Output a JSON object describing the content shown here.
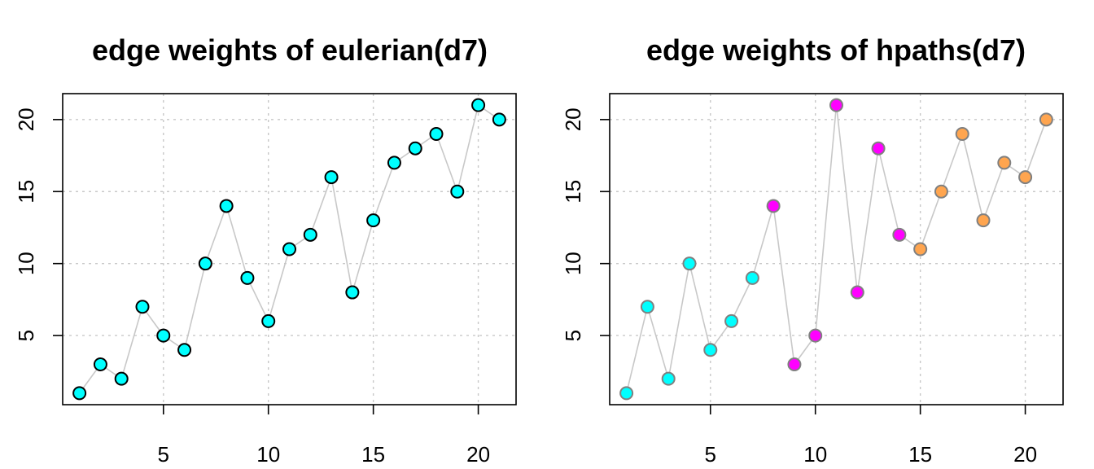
{
  "chart_data": [
    {
      "type": "scatter",
      "title": "edge weights of eulerian(d7)",
      "xlabel": "",
      "ylabel": "",
      "x_ticks": [
        5,
        10,
        15,
        20
      ],
      "y_ticks": [
        5,
        10,
        15,
        20
      ],
      "xlim": [
        0.2,
        21.8
      ],
      "ylim": [
        0.2,
        21.8
      ],
      "grid": true,
      "connect_points": true,
      "line_color": "#c8c8c8",
      "point_stroke": "#000000",
      "x": [
        1,
        2,
        3,
        4,
        5,
        6,
        7,
        8,
        9,
        10,
        11,
        12,
        13,
        14,
        15,
        16,
        17,
        18,
        19,
        20,
        21
      ],
      "y": [
        1,
        3,
        2,
        7,
        5,
        4,
        10,
        14,
        9,
        6,
        11,
        12,
        16,
        8,
        13,
        17,
        18,
        19,
        15,
        21,
        20
      ],
      "colors": [
        "#00ffff",
        "#00ffff",
        "#00ffff",
        "#00ffff",
        "#00ffff",
        "#00ffff",
        "#00ffff",
        "#00ffff",
        "#00ffff",
        "#00ffff",
        "#00ffff",
        "#00ffff",
        "#00ffff",
        "#00ffff",
        "#00ffff",
        "#00ffff",
        "#00ffff",
        "#00ffff",
        "#00ffff",
        "#00ffff",
        "#00ffff"
      ]
    },
    {
      "type": "scatter",
      "title": "edge weights of hpaths(d7)",
      "xlabel": "",
      "ylabel": "",
      "x_ticks": [
        5,
        10,
        15,
        20
      ],
      "y_ticks": [
        5,
        10,
        15,
        20
      ],
      "xlim": [
        0.2,
        21.8
      ],
      "ylim": [
        0.2,
        21.8
      ],
      "grid": true,
      "connect_points": true,
      "line_color": "#c8c8c8",
      "point_stroke": "#808080",
      "x": [
        1,
        2,
        3,
        4,
        5,
        6,
        7,
        8,
        9,
        10,
        11,
        12,
        13,
        14,
        15,
        16,
        17,
        18,
        19,
        20,
        21
      ],
      "y": [
        1,
        7,
        2,
        10,
        4,
        6,
        9,
        14,
        3,
        5,
        21,
        8,
        18,
        12,
        11,
        15,
        19,
        13,
        17,
        16,
        20
      ],
      "colors": [
        "#00ffff",
        "#00ffff",
        "#00ffff",
        "#00ffff",
        "#00ffff",
        "#00ffff",
        "#00ffff",
        "#ff00ff",
        "#ff00ff",
        "#ff00ff",
        "#ff00ff",
        "#ff00ff",
        "#ff00ff",
        "#ff00ff",
        "#ffa54f",
        "#ffa54f",
        "#ffa54f",
        "#ffa54f",
        "#ffa54f",
        "#ffa54f",
        "#ffa54f"
      ]
    }
  ]
}
